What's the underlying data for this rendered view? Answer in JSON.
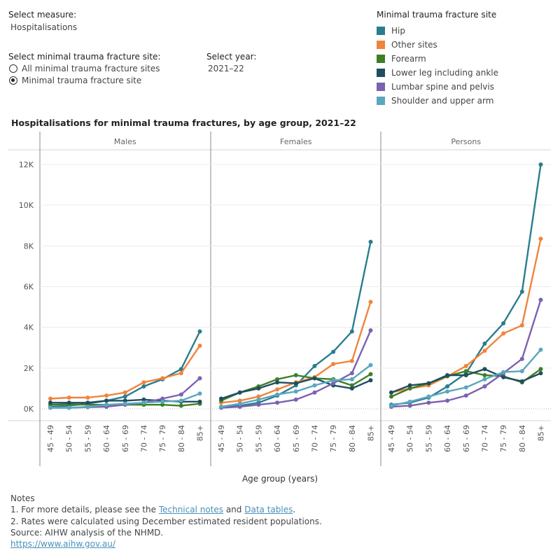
{
  "controls": {
    "measure_label": "Select measure:",
    "measure_value": "Hospitalisations",
    "site_label": "Select minimal trauma fracture site:",
    "site_options": [
      {
        "label": "All minimal trauma fracture sites",
        "selected": false
      },
      {
        "label": "Minimal trauma fracture site",
        "selected": true
      }
    ],
    "year_label": "Select year:",
    "year_value": "2021–22"
  },
  "legend": {
    "title": "Minimal trauma fracture site",
    "items": [
      {
        "label": "Hip",
        "color": "#2a7d8e"
      },
      {
        "label": "Other sites",
        "color": "#f0843c"
      },
      {
        "label": "Forearm",
        "color": "#3f7e26"
      },
      {
        "label": "Lower leg including ankle",
        "color": "#1f4e60"
      },
      {
        "label": "Lumbar spine and pelvis",
        "color": "#7b62b0"
      },
      {
        "label": "Shoulder and upper arm",
        "color": "#5aa7bd"
      }
    ]
  },
  "chart_data": {
    "type": "line",
    "title": "Hospitalisations for minimal trauma fractures, by age group, 2021–22",
    "xlabel": "Age group (years)",
    "ylabel": "",
    "categories": [
      "45 - 49",
      "50 - 54",
      "55 - 59",
      "60 - 64",
      "65 - 69",
      "70 - 74",
      "75 - 79",
      "80 - 84",
      "85+"
    ],
    "ylim": [
      0,
      12500
    ],
    "yticks": [
      0,
      2000,
      4000,
      6000,
      8000,
      10000,
      12000
    ],
    "ytick_labels": [
      "0K",
      "2K",
      "4K",
      "6K",
      "8K",
      "10K",
      "12K"
    ],
    "panels": [
      {
        "name": "Males",
        "series": [
          {
            "name": "Hip",
            "values": [
              100,
              150,
              250,
              400,
              600,
              1100,
              1450,
              1950,
              3800
            ]
          },
          {
            "name": "Other sites",
            "values": [
              500,
              550,
              550,
              650,
              800,
              1300,
              1500,
              1750,
              3100
            ]
          },
          {
            "name": "Forearm",
            "values": [
              200,
              220,
              200,
              200,
              200,
              200,
              200,
              150,
              250
            ]
          },
          {
            "name": "Lower leg including ankle",
            "values": [
              300,
              300,
              300,
              400,
              400,
              450,
              400,
              350,
              350
            ]
          },
          {
            "name": "Lumbar spine and pelvis",
            "values": [
              50,
              50,
              80,
              100,
              200,
              300,
              500,
              700,
              1500
            ]
          },
          {
            "name": "Shoulder and upper arm",
            "values": [
              50,
              50,
              100,
              200,
              250,
              300,
              350,
              400,
              750
            ]
          }
        ]
      },
      {
        "name": "Females",
        "series": [
          {
            "name": "Hip",
            "values": [
              100,
              150,
              300,
              650,
              1150,
              2100,
              2800,
              3800,
              8200
            ]
          },
          {
            "name": "Other sites",
            "values": [
              300,
              400,
              600,
              950,
              1300,
              1550,
              2200,
              2350,
              5250
            ]
          },
          {
            "name": "Forearm",
            "values": [
              400,
              800,
              1100,
              1450,
              1650,
              1500,
              1450,
              1150,
              1700
            ]
          },
          {
            "name": "Lower leg including ankle",
            "values": [
              500,
              800,
              1000,
              1300,
              1250,
              1500,
              1150,
              1000,
              1400
            ]
          },
          {
            "name": "Lumbar spine and pelvis",
            "values": [
              50,
              100,
              200,
              300,
              450,
              800,
              1250,
              1750,
              3850
            ]
          },
          {
            "name": "Shoulder and upper arm",
            "values": [
              100,
              250,
              450,
              700,
              850,
              1150,
              1400,
              1450,
              2150
            ]
          }
        ]
      },
      {
        "name": "Persons",
        "series": [
          {
            "name": "Hip",
            "values": [
              200,
              300,
              550,
              1100,
              1750,
              3200,
              4200,
              5750,
              12000
            ]
          },
          {
            "name": "Other sites",
            "values": [
              800,
              1000,
              1150,
              1600,
              2100,
              2850,
              3700,
              4100,
              8350
            ]
          },
          {
            "name": "Forearm",
            "values": [
              600,
              1000,
              1250,
              1600,
              1850,
              1650,
              1600,
              1300,
              1950
            ]
          },
          {
            "name": "Lower leg including ankle",
            "values": [
              800,
              1150,
              1250,
              1650,
              1650,
              1950,
              1550,
              1350,
              1750
            ]
          },
          {
            "name": "Lumbar spine and pelvis",
            "values": [
              100,
              150,
              300,
              400,
              650,
              1100,
              1750,
              2450,
              5350
            ]
          },
          {
            "name": "Shoulder and upper arm",
            "values": [
              150,
              350,
              600,
              850,
              1050,
              1450,
              1800,
              1850,
              2900
            ]
          }
        ]
      }
    ]
  },
  "notes": {
    "heading": "Notes",
    "line1_prefix": "1. For more details, please see the ",
    "line1_link1": "Technical notes",
    "line1_mid": " and ",
    "line1_link2": "Data tables",
    "line1_suffix": ".",
    "line2": "2. Rates were calculated using December estimated resident populations.",
    "source": "Source: AIHW analysis of the NHMD.",
    "url": "https://www.aihw.gov.au/"
  }
}
